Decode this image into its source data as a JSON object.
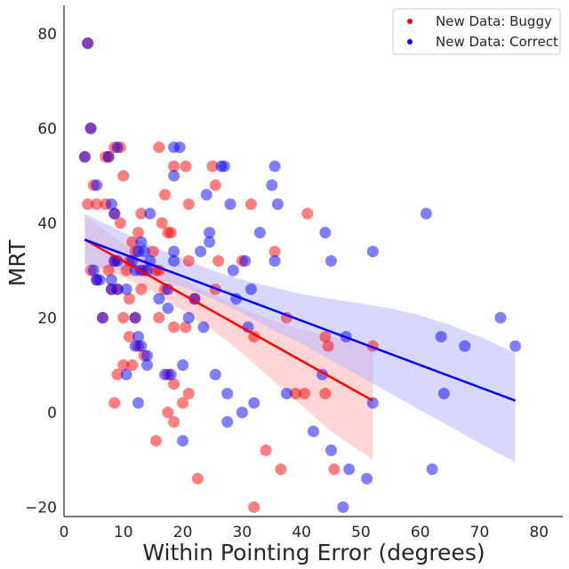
{
  "chart_data": {
    "type": "scatter",
    "xlabel": "Within Pointing Error (degrees)",
    "ylabel": "MRT",
    "xlim": [
      0,
      84
    ],
    "ylim": [
      -22,
      86
    ],
    "xticks": [
      0,
      10,
      20,
      30,
      40,
      50,
      60,
      70,
      80
    ],
    "yticks": [
      -20,
      0,
      20,
      40,
      60,
      80
    ],
    "xtick_labels": [
      "0",
      "10",
      "20",
      "30",
      "40",
      "50",
      "60",
      "70",
      "80"
    ],
    "ytick_labels": [
      "−20",
      "0",
      "20",
      "40",
      "60",
      "80"
    ],
    "grid": false,
    "legend_position": "top-right",
    "series": [
      {
        "name": "New Data: Buggy",
        "color": "#ff0000",
        "band_color": "#ffb3b3",
        "regression": {
          "x": [
            3.5,
            52
          ],
          "y": [
            36.5,
            2.5
          ]
        },
        "band": {
          "x": [
            3.5,
            10,
            15,
            20,
            25,
            30,
            35,
            40,
            45,
            52
          ],
          "upper": [
            41.5,
            35.5,
            31.5,
            28,
            25,
            22,
            19.5,
            17.5,
            16,
            14
          ],
          "lower": [
            31.5,
            28.5,
            25.5,
            21.5,
            17.5,
            12.5,
            7,
            1.5,
            -4,
            -10
          ]
        },
        "points": [
          [
            4,
            78
          ],
          [
            4.5,
            60
          ],
          [
            3.5,
            54
          ],
          [
            5,
            48
          ],
          [
            4,
            44
          ],
          [
            5.5,
            44
          ],
          [
            4.5,
            30
          ],
          [
            5.5,
            28
          ],
          [
            6.5,
            20
          ],
          [
            7,
            54
          ],
          [
            7.5,
            54
          ],
          [
            8.5,
            56
          ],
          [
            9.5,
            56
          ],
          [
            10,
            50
          ],
          [
            7,
            44
          ],
          [
            8.5,
            42
          ],
          [
            9.5,
            40
          ],
          [
            7.5,
            30
          ],
          [
            8.5,
            32
          ],
          [
            8,
            26
          ],
          [
            9,
            26
          ],
          [
            10.5,
            30
          ],
          [
            11,
            32
          ],
          [
            11.5,
            36
          ],
          [
            12,
            34
          ],
          [
            13.5,
            30
          ],
          [
            12.5,
            38
          ],
          [
            13,
            42
          ],
          [
            15,
            34
          ],
          [
            15.5,
            30
          ],
          [
            13,
            26
          ],
          [
            11,
            24
          ],
          [
            12,
            20
          ],
          [
            10,
            20
          ],
          [
            11,
            16
          ],
          [
            12.5,
            14
          ],
          [
            13.5,
            12
          ],
          [
            11.5,
            10
          ],
          [
            10,
            10
          ],
          [
            9,
            8
          ],
          [
            8.5,
            2
          ],
          [
            16,
            56
          ],
          [
            17,
            46
          ],
          [
            17.5,
            38
          ],
          [
            18,
            38
          ],
          [
            18.5,
            52
          ],
          [
            16.5,
            40
          ],
          [
            16,
            30
          ],
          [
            17,
            26
          ],
          [
            16,
            20
          ],
          [
            18.5,
            18
          ],
          [
            17.5,
            8
          ],
          [
            18.5,
            6
          ],
          [
            17.5,
            0
          ],
          [
            18.5,
            -2
          ],
          [
            15.5,
            -6
          ],
          [
            20.5,
            52
          ],
          [
            21,
            44
          ],
          [
            21,
            32
          ],
          [
            22,
            24
          ],
          [
            20.5,
            18
          ],
          [
            21,
            4
          ],
          [
            20,
            2
          ],
          [
            22.5,
            -14
          ],
          [
            25,
            52
          ],
          [
            25.5,
            48
          ],
          [
            26,
            32
          ],
          [
            25.5,
            26
          ],
          [
            30,
            32
          ],
          [
            31.5,
            44
          ],
          [
            32,
            16
          ],
          [
            32,
            -20
          ],
          [
            35.5,
            34
          ],
          [
            37.5,
            20
          ],
          [
            34,
            -8
          ],
          [
            36.5,
            -12
          ],
          [
            41,
            42
          ],
          [
            39,
            4
          ],
          [
            40.5,
            4
          ],
          [
            44,
            16
          ],
          [
            44.5,
            14
          ],
          [
            44,
            4
          ],
          [
            45.5,
            -12
          ],
          [
            52,
            14
          ]
        ]
      },
      {
        "name": "New Data: Correct",
        "color": "#0000ff",
        "band_color": "#b8b8ff",
        "regression": {
          "x": [
            3.5,
            76
          ],
          "y": [
            36.5,
            2.5
          ]
        },
        "band": {
          "x": [
            3.5,
            10,
            15,
            20,
            25,
            30,
            35,
            40,
            45,
            50,
            55,
            60,
            65,
            70,
            76
          ],
          "upper": [
            42,
            38,
            35,
            32.5,
            30,
            28,
            26.5,
            25,
            24,
            23,
            22,
            20.5,
            18.5,
            16,
            12.5
          ],
          "lower": [
            31,
            30,
            28.5,
            26.5,
            24,
            21,
            17.5,
            14.5,
            11,
            7.5,
            4,
            0.5,
            -3,
            -6.5,
            -10.5
          ]
        },
        "points": [
          [
            4,
            78
          ],
          [
            4.5,
            60
          ],
          [
            3.5,
            54
          ],
          [
            5.5,
            48
          ],
          [
            5.5,
            28
          ],
          [
            5,
            30
          ],
          [
            6,
            28
          ],
          [
            6.5,
            20
          ],
          [
            7.5,
            54
          ],
          [
            8,
            44
          ],
          [
            8.5,
            42
          ],
          [
            9,
            56
          ],
          [
            8.5,
            32
          ],
          [
            9,
            32
          ],
          [
            8,
            28
          ],
          [
            8,
            26
          ],
          [
            9,
            26
          ],
          [
            10.5,
            26
          ],
          [
            11.5,
            32
          ],
          [
            12,
            30
          ],
          [
            12.5,
            34
          ],
          [
            13,
            36
          ],
          [
            13.5,
            34
          ],
          [
            14,
            30
          ],
          [
            14.5,
            32
          ],
          [
            13,
            30
          ],
          [
            12,
            20
          ],
          [
            12.5,
            16
          ],
          [
            12,
            14
          ],
          [
            13,
            14
          ],
          [
            14,
            12
          ],
          [
            14,
            10
          ],
          [
            10.5,
            8
          ],
          [
            12.5,
            2
          ],
          [
            14.5,
            42
          ],
          [
            16,
            24
          ],
          [
            17.5,
            26
          ],
          [
            17.5,
            22
          ],
          [
            17,
            8
          ],
          [
            18,
            8
          ],
          [
            18.5,
            56
          ],
          [
            18.5,
            50
          ],
          [
            18.5,
            34
          ],
          [
            18.5,
            32
          ],
          [
            19.5,
            56
          ],
          [
            20,
            10
          ],
          [
            20,
            -6
          ],
          [
            21,
            20
          ],
          [
            22,
            24
          ],
          [
            23,
            34
          ],
          [
            23.5,
            18
          ],
          [
            24,
            46
          ],
          [
            24.5,
            38
          ],
          [
            24.5,
            36
          ],
          [
            25.5,
            8
          ],
          [
            26.5,
            52
          ],
          [
            27,
            52
          ],
          [
            28,
            44
          ],
          [
            27.5,
            4
          ],
          [
            27.5,
            -2
          ],
          [
            28.5,
            30
          ],
          [
            29,
            24
          ],
          [
            30,
            0
          ],
          [
            30.5,
            32
          ],
          [
            31,
            18
          ],
          [
            31.5,
            26
          ],
          [
            32,
            2
          ],
          [
            33,
            38
          ],
          [
            35,
            48
          ],
          [
            35.5,
            52
          ],
          [
            36,
            44
          ],
          [
            35.5,
            32
          ],
          [
            37.5,
            4
          ],
          [
            42,
            -4
          ],
          [
            43.5,
            8
          ],
          [
            44,
            38
          ],
          [
            45,
            32
          ],
          [
            45,
            -8
          ],
          [
            47,
            -20
          ],
          [
            47.5,
            16
          ],
          [
            48,
            -12
          ],
          [
            51,
            -14
          ],
          [
            52,
            34
          ],
          [
            52,
            2
          ],
          [
            61,
            42
          ],
          [
            62,
            -12
          ],
          [
            63.5,
            16
          ],
          [
            64,
            4
          ],
          [
            67.5,
            14
          ],
          [
            73.5,
            20
          ],
          [
            76,
            14
          ]
        ]
      }
    ]
  }
}
